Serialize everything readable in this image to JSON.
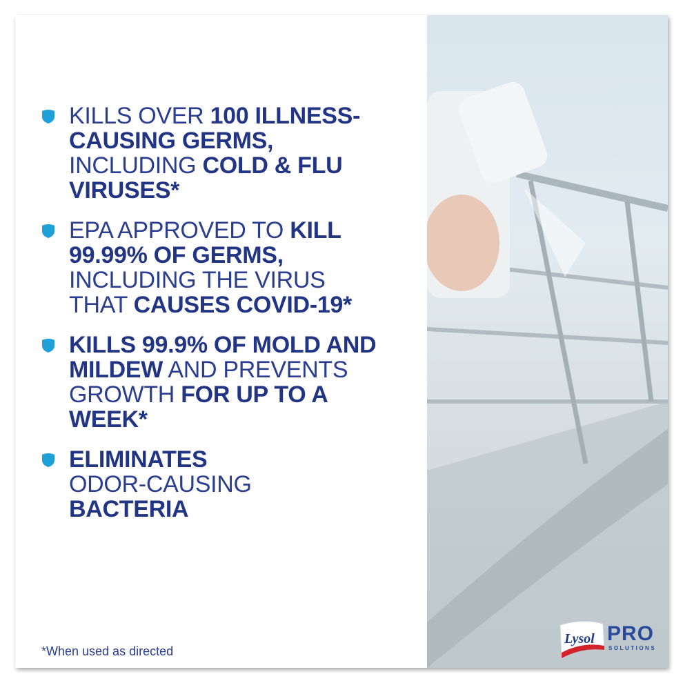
{
  "colors": {
    "text": "#2a3d8f",
    "shield": "#1ea0d8"
  },
  "bullets": [
    {
      "icon": "shield-icon",
      "lines": [
        [
          {
            "t": "KILLS OVER ",
            "b": false
          },
          {
            "t": "100 ILLNESS-",
            "b": true
          }
        ],
        [
          {
            "t": "CAUSING GERMS,",
            "b": true
          }
        ],
        [
          {
            "t": "INCLUDING ",
            "b": false
          },
          {
            "t": "COLD & FLU",
            "b": true
          }
        ],
        [
          {
            "t": "VIRUSES*",
            "b": true
          }
        ]
      ]
    },
    {
      "icon": "shield-icon",
      "lines": [
        [
          {
            "t": "EPA APPROVED TO ",
            "b": false
          },
          {
            "t": "KILL",
            "b": true
          }
        ],
        [
          {
            "t": "99.99% OF GERMS,",
            "b": true
          }
        ],
        [
          {
            "t": "INCLUDING THE VIRUS",
            "b": false
          }
        ],
        [
          {
            "t": "THAT ",
            "b": false
          },
          {
            "t": "CAUSES COVID-19*",
            "b": true
          }
        ]
      ]
    },
    {
      "icon": "shield-icon",
      "lines": [
        [
          {
            "t": "KILLS 99.9% OF MOLD AND",
            "b": true
          }
        ],
        [
          {
            "t": "MILDEW",
            "b": true
          },
          {
            "t": " AND PREVENTS",
            "b": false
          }
        ],
        [
          {
            "t": "GROWTH ",
            "b": false
          },
          {
            "t": "FOR UP TO A",
            "b": true
          }
        ],
        [
          {
            "t": "WEEK*",
            "b": true
          }
        ]
      ]
    },
    {
      "icon": "shield-icon",
      "lines": [
        [
          {
            "t": "ELIMINATES",
            "b": true
          }
        ],
        [
          {
            "t": "ODOR-CAUSING",
            "b": false
          }
        ],
        [
          {
            "t": "BACTERIA",
            "b": true
          }
        ]
      ]
    }
  ],
  "footnote": "*When used as directed",
  "logo": {
    "brand": "Lysol",
    "pro": "PRO",
    "solutions": "SOLUTIONS"
  }
}
